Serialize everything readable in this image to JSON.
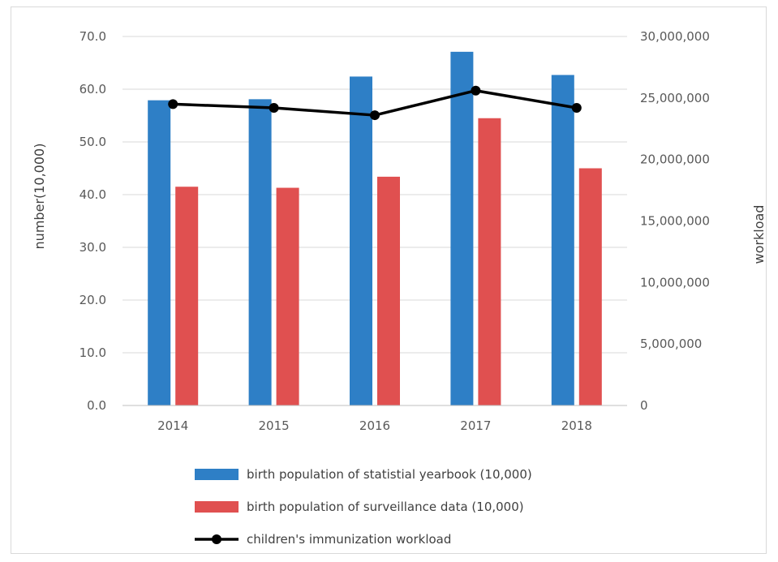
{
  "chart_data": {
    "type": "bar",
    "categories": [
      "2014",
      "2015",
      "2016",
      "2017",
      "2018"
    ],
    "series": [
      {
        "name": "birth population of statistial yearbook (10,000)",
        "kind": "bar",
        "axis": "left",
        "color": "#2e7fc6",
        "values": [
          57.9,
          58.1,
          62.4,
          67.1,
          62.7
        ]
      },
      {
        "name": "birth population of surveillance data (10,000)",
        "kind": "bar",
        "axis": "left",
        "color": "#e05050",
        "values": [
          41.5,
          41.3,
          43.4,
          54.5,
          45.0
        ]
      },
      {
        "name": "children's immunization workload",
        "kind": "line",
        "axis": "right",
        "color": "#000000",
        "values": [
          24500000,
          24200000,
          23600000,
          25600000,
          24200000
        ]
      }
    ],
    "ylabel": "number(10,000)",
    "y2label": "workload",
    "ylim": [
      0,
      70
    ],
    "y2lim": [
      0,
      30000000
    ],
    "yticks": [
      "0.0",
      "10.0",
      "20.0",
      "30.0",
      "40.0",
      "50.0",
      "60.0",
      "70.0"
    ],
    "y2ticks": [
      "0",
      "5,000,000",
      "10,000,000",
      "15,000,000",
      "20,000,000",
      "25,000,000",
      "30,000,000"
    ],
    "grid": true,
    "legend_position": "bottom"
  }
}
